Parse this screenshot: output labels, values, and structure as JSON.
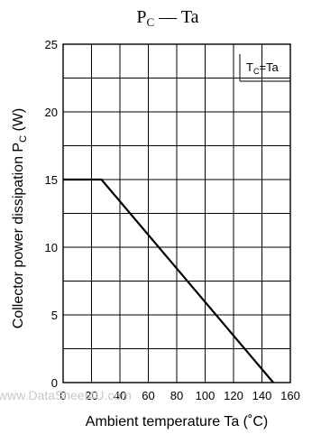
{
  "chart_data": {
    "type": "line",
    "title": "PC — Ta",
    "title_parts": {
      "main": "P",
      "sub": "C",
      "rest": " — Ta"
    },
    "xlabel": "Ambient temperature   Ta  (˚C)",
    "ylabel": {
      "main": "Collector power dissipation   P",
      "sub": "C",
      "unit": "  (W)"
    },
    "xlim": [
      0,
      160
    ],
    "ylim": [
      0,
      25
    ],
    "xticks": [
      0,
      20,
      40,
      60,
      80,
      100,
      120,
      140,
      160
    ],
    "yticks": [
      0,
      5,
      10,
      15,
      20,
      25
    ],
    "x_gridlines": [
      0,
      20,
      40,
      60,
      80,
      100,
      120,
      140,
      160
    ],
    "y_gridlines": [
      0,
      2.5,
      5,
      7.5,
      10,
      12.5,
      15,
      17.5,
      20,
      22.5,
      25
    ],
    "grid": true,
    "series": [
      {
        "x": [
          0,
          27,
          148
        ],
        "y": [
          15,
          15,
          0
        ]
      }
    ],
    "annotation": {
      "main": "T",
      "sub": "C",
      "rest": "=Ta"
    }
  },
  "watermark": "www.DataSheet4U.com"
}
